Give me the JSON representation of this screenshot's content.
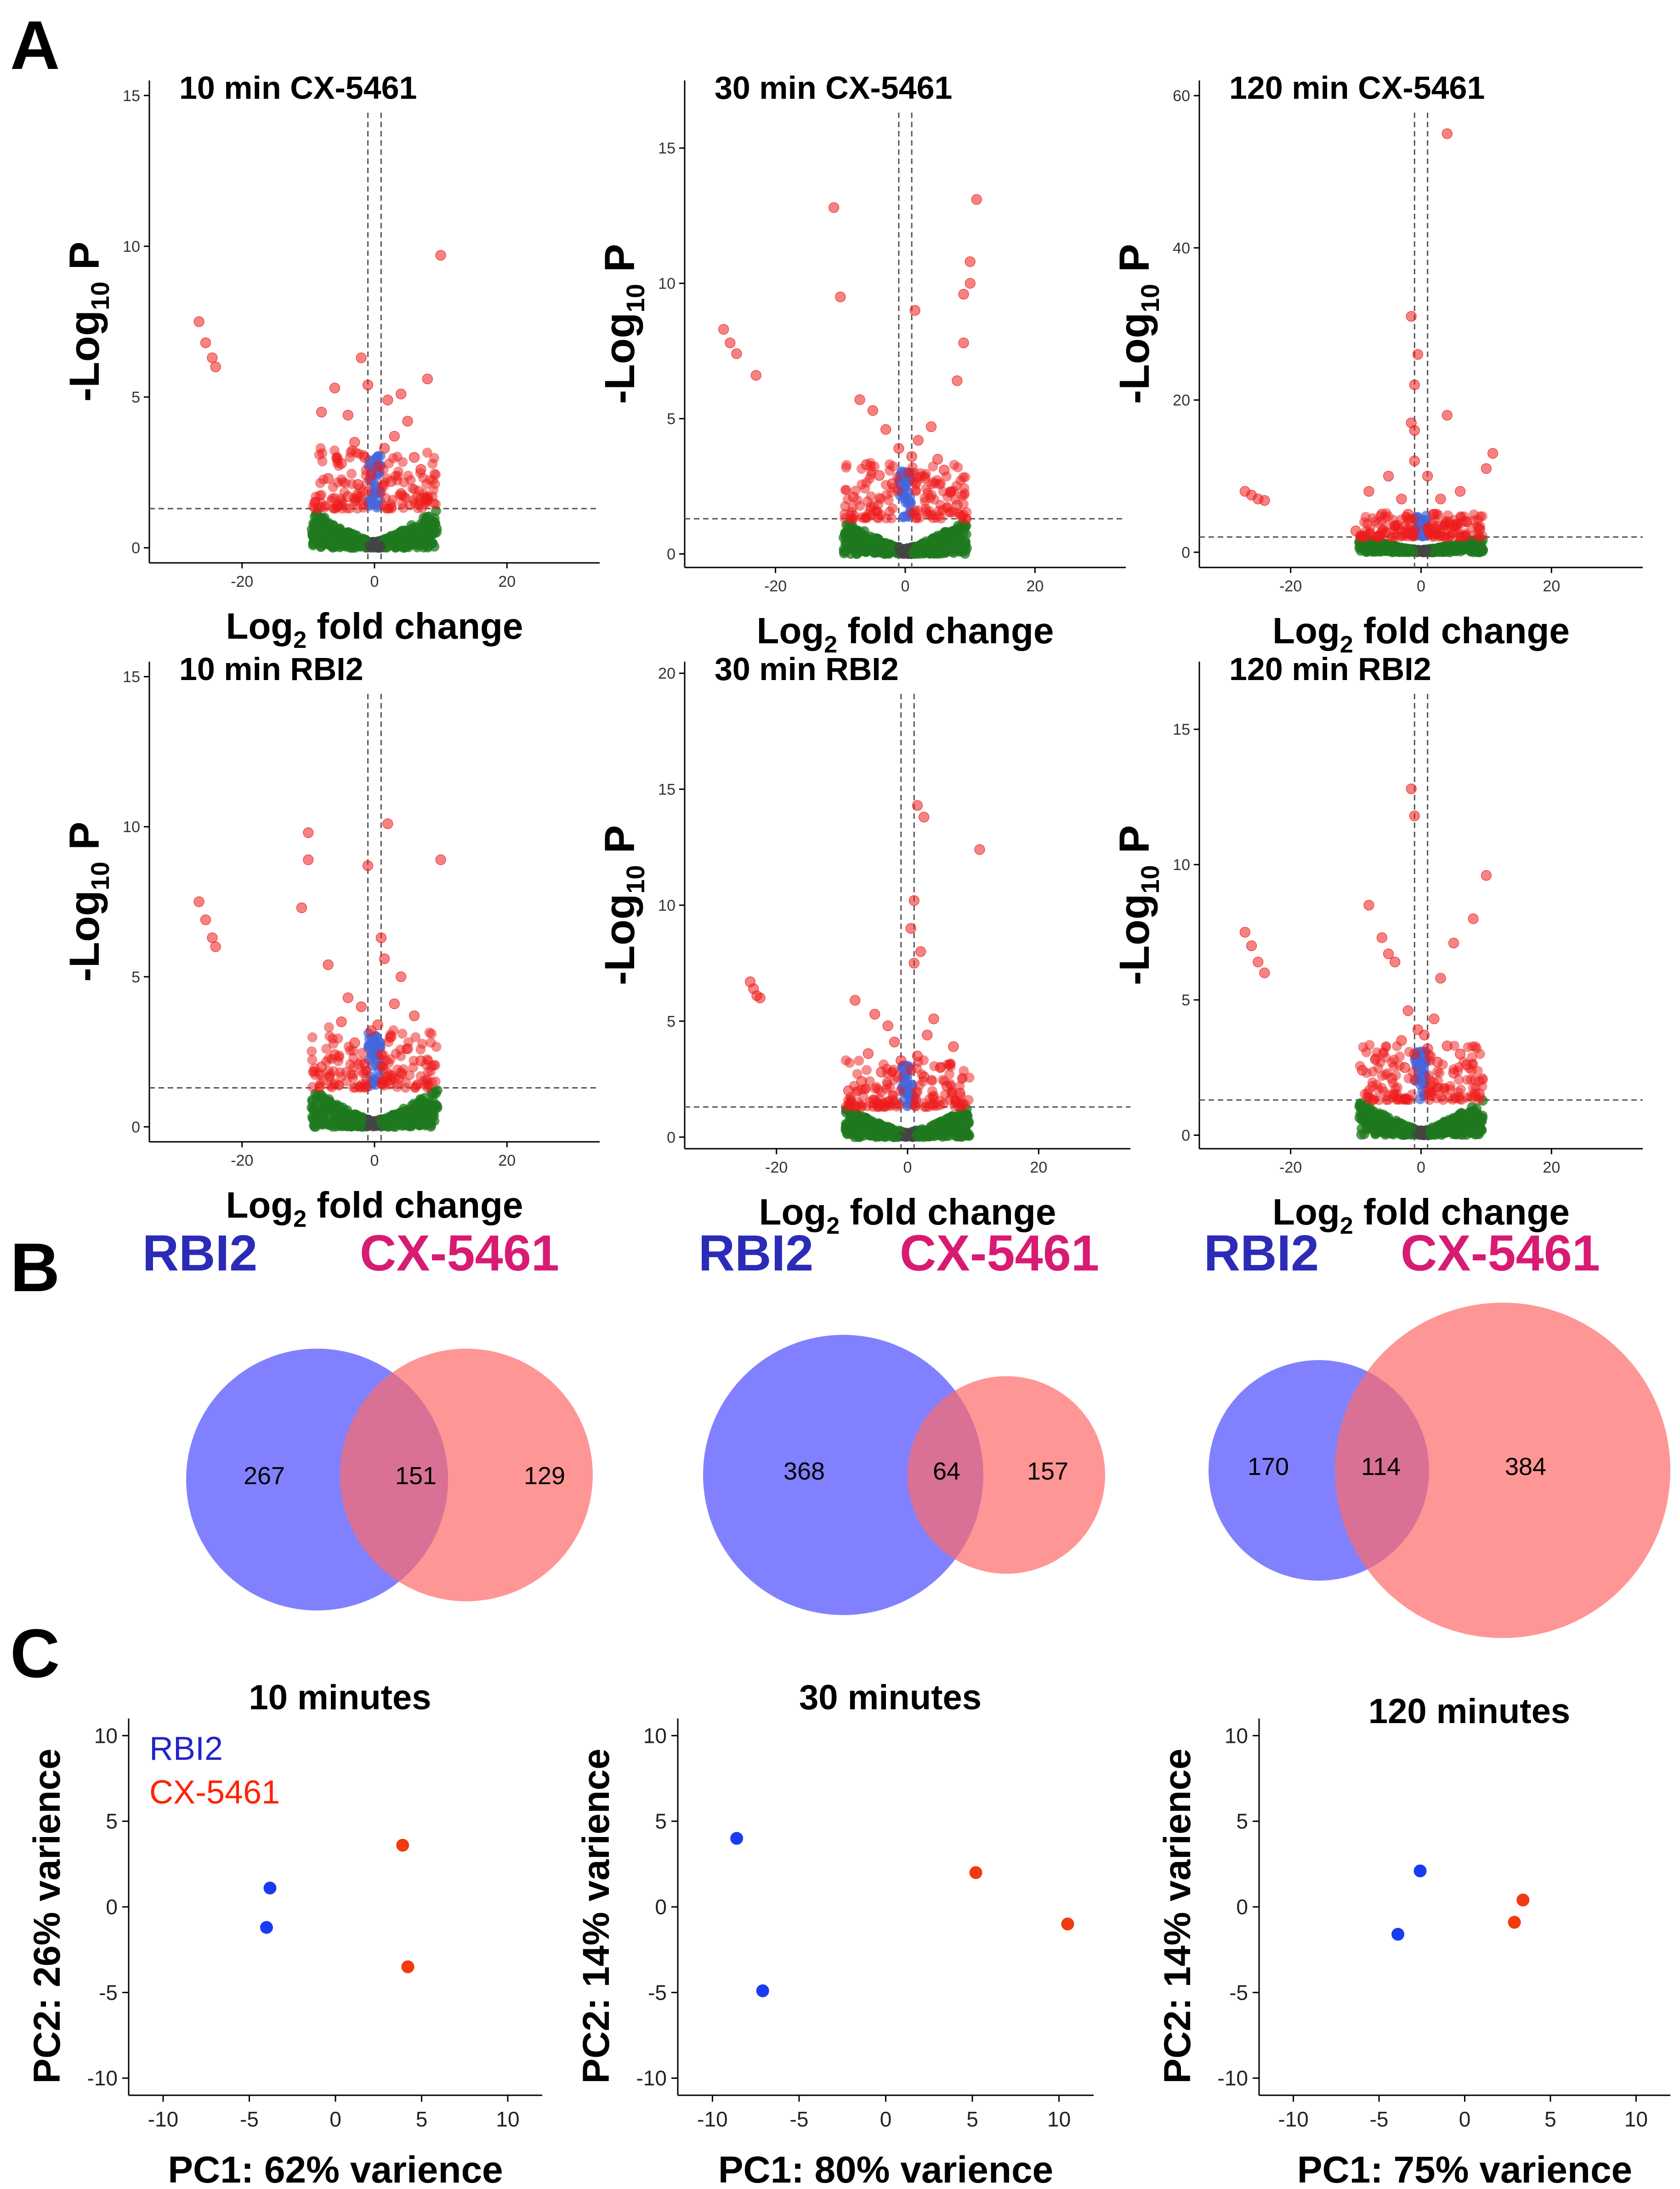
{
  "panel_letters": [
    "A",
    "B",
    "C"
  ],
  "chart_data": [
    {
      "type": "scatter",
      "kind": "volcano",
      "title": "10 min CX-5461",
      "xlabel": "Log2 fold change",
      "ylabel": "-Log10 P",
      "xlim": [
        -34,
        34
      ],
      "ylim": [
        -0.5,
        15.5
      ],
      "xticks": [
        -20,
        0,
        20
      ],
      "yticks": [
        0,
        5,
        10,
        15
      ],
      "fc_cutoff": 1,
      "p_cutoff": 1.3,
      "points": [
        [
          -26.5,
          7.5
        ],
        [
          -25.5,
          6.8
        ],
        [
          -24.5,
          6.3
        ],
        [
          -24,
          6
        ],
        [
          10,
          9.7
        ],
        [
          -2,
          6.3
        ],
        [
          8,
          5.6
        ],
        [
          -6,
          5.3
        ],
        [
          4,
          5.1
        ],
        [
          -1,
          5.4
        ],
        [
          2,
          4.9
        ],
        [
          -8,
          4.5
        ],
        [
          5,
          4.2
        ],
        [
          -4,
          4.4
        ],
        [
          3,
          3.7
        ],
        [
          -3,
          3.5
        ],
        [
          1.5,
          3.3
        ],
        [
          -1.5,
          3.0
        ],
        [
          6,
          3.0
        ],
        [
          -5,
          2.8
        ],
        [
          7,
          2.6
        ],
        [
          -7,
          2.3
        ],
        [
          0.5,
          2.7
        ],
        [
          -0.5,
          2.4
        ],
        [
          2.5,
          2.2
        ],
        [
          -2.5,
          2.1
        ],
        [
          4,
          1.8
        ],
        [
          -4,
          1.7
        ],
        [
          8,
          1.6
        ],
        [
          -9,
          1.5
        ]
      ]
    },
    {
      "type": "scatter",
      "kind": "volcano",
      "title": "30 min CX-5461",
      "xlabel": "Log2 fold change",
      "ylabel": "-Log10 P",
      "xlim": [
        -34,
        34
      ],
      "ylim": [
        -0.5,
        17.5
      ],
      "xticks": [
        -20,
        0,
        20
      ],
      "yticks": [
        0,
        5,
        10,
        15
      ],
      "fc_cutoff": 1,
      "p_cutoff": 1.3,
      "points": [
        [
          -28,
          8.3
        ],
        [
          -27,
          7.8
        ],
        [
          -26,
          7.4
        ],
        [
          -23,
          6.6
        ],
        [
          -11,
          12.8
        ],
        [
          -10,
          9.5
        ],
        [
          11,
          13.1
        ],
        [
          10,
          10.8
        ],
        [
          10,
          10.0
        ],
        [
          9,
          9.6
        ],
        [
          1.5,
          9.0
        ],
        [
          9,
          7.8
        ],
        [
          8,
          6.4
        ],
        [
          -7,
          5.7
        ],
        [
          -5,
          5.3
        ],
        [
          4,
          4.7
        ],
        [
          -3,
          4.6
        ],
        [
          2,
          4.2
        ],
        [
          -1,
          3.9
        ],
        [
          1,
          3.6
        ],
        [
          5,
          3.5
        ],
        [
          -6,
          3.3
        ],
        [
          6,
          3.1
        ],
        [
          -4,
          2.9
        ],
        [
          3,
          2.8
        ],
        [
          0.5,
          3.0
        ],
        [
          -2,
          2.6
        ],
        [
          7,
          2.3
        ],
        [
          -8,
          2.1
        ],
        [
          8,
          1.8
        ]
      ]
    },
    {
      "type": "scatter",
      "kind": "volcano",
      "title": "120 min CX-5461",
      "xlabel": "Log2 fold change",
      "ylabel": "-Log10 P",
      "xlim": [
        -34,
        34
      ],
      "ylim": [
        -2,
        62
      ],
      "xticks": [
        -20,
        0,
        20
      ],
      "yticks": [
        0,
        20,
        40,
        60
      ],
      "fc_cutoff": 1,
      "p_cutoff": 2,
      "points": [
        [
          -27,
          8
        ],
        [
          -26,
          7.5
        ],
        [
          -25,
          7
        ],
        [
          -24,
          6.8
        ],
        [
          4,
          55
        ],
        [
          -1.5,
          31
        ],
        [
          -0.5,
          26
        ],
        [
          -1,
          22
        ],
        [
          -1.5,
          17
        ],
        [
          -1,
          16
        ],
        [
          4,
          18
        ],
        [
          11,
          13
        ],
        [
          10,
          11
        ],
        [
          -1,
          12
        ],
        [
          1,
          10
        ],
        [
          -5,
          10
        ],
        [
          -8,
          8
        ],
        [
          6,
          8
        ],
        [
          3,
          7
        ],
        [
          -3,
          7
        ],
        [
          -6,
          5
        ],
        [
          7,
          4
        ],
        [
          2,
          5
        ],
        [
          -2,
          5
        ],
        [
          5,
          3.5
        ],
        [
          -4,
          3.5
        ],
        [
          9,
          3
        ],
        [
          -10,
          2.8
        ],
        [
          1,
          3.2
        ],
        [
          -1,
          3.0
        ]
      ]
    },
    {
      "type": "scatter",
      "kind": "volcano",
      "title": "10 min RBI2",
      "xlabel": "Log2 fold change",
      "ylabel": "-Log10 P",
      "xlim": [
        -34,
        34
      ],
      "ylim": [
        -0.5,
        15.5
      ],
      "xticks": [
        -20,
        0,
        20
      ],
      "yticks": [
        0,
        5,
        10,
        15
      ],
      "fc_cutoff": 1,
      "p_cutoff": 1.3,
      "points": [
        [
          -26.5,
          7.5
        ],
        [
          -25.5,
          6.9
        ],
        [
          -24.5,
          6.3
        ],
        [
          -24,
          6.0
        ],
        [
          -10,
          9.8
        ],
        [
          -10,
          8.9
        ],
        [
          -11,
          7.3
        ],
        [
          2,
          10.1
        ],
        [
          10,
          8.9
        ],
        [
          -1,
          8.7
        ],
        [
          1,
          6.3
        ],
        [
          -7,
          5.4
        ],
        [
          1.5,
          5.6
        ],
        [
          4,
          5.0
        ],
        [
          -4,
          4.3
        ],
        [
          3,
          4.1
        ],
        [
          -2,
          4.0
        ],
        [
          6,
          3.7
        ],
        [
          -5,
          3.5
        ],
        [
          0.5,
          3.4
        ],
        [
          -0.5,
          3.2
        ],
        [
          2.5,
          3.0
        ],
        [
          -3,
          2.8
        ],
        [
          5,
          2.6
        ],
        [
          -6,
          2.4
        ],
        [
          7,
          2.2
        ],
        [
          -8,
          2.0
        ],
        [
          1,
          2.4
        ],
        [
          -1.5,
          2.1
        ],
        [
          4,
          1.8
        ]
      ]
    },
    {
      "type": "scatter",
      "kind": "volcano",
      "title": "30 min RBI2",
      "xlabel": "Log2 fold change",
      "ylabel": "-Log10 P",
      "xlim": [
        -34,
        34
      ],
      "ylim": [
        -0.5,
        20.5
      ],
      "xticks": [
        -20,
        0,
        20
      ],
      "yticks": [
        0,
        5,
        10,
        15,
        20
      ],
      "fc_cutoff": 1,
      "p_cutoff": 1.3,
      "points": [
        [
          -24,
          6.7
        ],
        [
          -23.5,
          6.4
        ],
        [
          -23,
          6.1
        ],
        [
          -22.5,
          6.0
        ],
        [
          11,
          12.4
        ],
        [
          1.5,
          14.3
        ],
        [
          2.5,
          13.8
        ],
        [
          1,
          10.2
        ],
        [
          0.5,
          9.0
        ],
        [
          2,
          8.0
        ],
        [
          1,
          7.5
        ],
        [
          -8,
          5.9
        ],
        [
          -5,
          5.3
        ],
        [
          4,
          5.1
        ],
        [
          -3,
          4.8
        ],
        [
          3,
          4.4
        ],
        [
          -2,
          4.1
        ],
        [
          7,
          3.9
        ],
        [
          -6,
          3.6
        ],
        [
          1.5,
          3.5
        ],
        [
          -1,
          3.3
        ],
        [
          5,
          3.0
        ],
        [
          -4,
          2.8
        ],
        [
          2.5,
          2.6
        ],
        [
          -7,
          2.4
        ],
        [
          6,
          2.2
        ],
        [
          -9,
          2.0
        ],
        [
          8,
          1.9
        ],
        [
          -1.5,
          2.6
        ],
        [
          0.5,
          2.9
        ]
      ]
    },
    {
      "type": "scatter",
      "kind": "volcano",
      "title": "120 min RBI2",
      "xlabel": "Log2 fold change",
      "ylabel": "-Log10 P",
      "xlim": [
        -34,
        34
      ],
      "ylim": [
        -0.5,
        17.5
      ],
      "xticks": [
        -20,
        0,
        20
      ],
      "yticks": [
        0,
        5,
        10,
        15
      ],
      "fc_cutoff": 1,
      "p_cutoff": 1.3,
      "points": [
        [
          -27,
          7.5
        ],
        [
          -26,
          7.0
        ],
        [
          -25,
          6.4
        ],
        [
          -24,
          6.0
        ],
        [
          -1.5,
          12.8
        ],
        [
          -1,
          11.8
        ],
        [
          10,
          9.6
        ],
        [
          -8,
          8.5
        ],
        [
          8,
          8.0
        ],
        [
          5,
          7.1
        ],
        [
          -6,
          7.3
        ],
        [
          -5,
          6.7
        ],
        [
          -4,
          6.4
        ],
        [
          3,
          5.8
        ],
        [
          -2,
          4.6
        ],
        [
          2,
          4.3
        ],
        [
          -0.5,
          3.9
        ],
        [
          0.5,
          3.7
        ],
        [
          -3,
          3.5
        ],
        [
          4,
          3.3
        ],
        [
          6,
          3.0
        ],
        [
          -7,
          2.8
        ],
        [
          7,
          2.6
        ],
        [
          -9,
          2.4
        ],
        [
          1,
          3.2
        ],
        [
          -1,
          3.0
        ],
        [
          2.5,
          2.7
        ],
        [
          -2.5,
          2.5
        ],
        [
          5,
          2.3
        ],
        [
          -4.5,
          2.1
        ]
      ]
    },
    {
      "type": "venn",
      "sets": [
        "RBI2",
        "CX-5461"
      ],
      "left_only": 267,
      "both": 151,
      "right_only": 129
    },
    {
      "type": "venn",
      "sets": [
        "RBI2",
        "CX-5461"
      ],
      "left_only": 368,
      "both": 64,
      "right_only": 157
    },
    {
      "type": "venn",
      "sets": [
        "RBI2",
        "CX-5461"
      ],
      "left_only": 170,
      "both": 114,
      "right_only": 384
    },
    {
      "type": "scatter",
      "kind": "pca",
      "title": "10 minutes",
      "xlabel": "PC1: 62% varience",
      "ylabel": "PC2: 26% varience",
      "xlim": [
        -12,
        12
      ],
      "ylim": [
        -11,
        11
      ],
      "xticks": [
        -10,
        -5,
        0,
        5,
        10
      ],
      "yticks": [
        -10,
        -5,
        0,
        5,
        10
      ],
      "legend": [
        {
          "name": "RBI2",
          "color": "#2323c8"
        },
        {
          "name": "CX-5461",
          "color": "#ff2200"
        }
      ],
      "points": [
        {
          "group": "RBI2",
          "x": -3.8,
          "y": 1.1
        },
        {
          "group": "RBI2",
          "x": -4.0,
          "y": -1.2
        },
        {
          "group": "CX-5461",
          "x": 3.9,
          "y": 3.6
        },
        {
          "group": "CX-5461",
          "x": 4.2,
          "y": -3.5
        }
      ]
    },
    {
      "type": "scatter",
      "kind": "pca",
      "title": "30 minutes",
      "xlabel": "PC1: 80% varience",
      "ylabel": "PC2: 14% varience",
      "xlim": [
        -12,
        12
      ],
      "ylim": [
        -11,
        11
      ],
      "xticks": [
        -10,
        -5,
        0,
        5,
        10
      ],
      "yticks": [
        -10,
        -5,
        0,
        5,
        10
      ],
      "points": [
        {
          "group": "RBI2",
          "x": -8.6,
          "y": 4.0
        },
        {
          "group": "RBI2",
          "x": -7.1,
          "y": -4.9
        },
        {
          "group": "CX-5461",
          "x": 5.2,
          "y": 2.0
        },
        {
          "group": "CX-5461",
          "x": 10.5,
          "y": -1.0
        }
      ]
    },
    {
      "type": "scatter",
      "kind": "pca",
      "title": "120 minutes",
      "xlabel": "PC1: 75% varience",
      "ylabel": "PC2: 14% varience",
      "xlim": [
        -12,
        12
      ],
      "ylim": [
        -11,
        11
      ],
      "xticks": [
        -10,
        -5,
        0,
        5,
        10
      ],
      "yticks": [
        -10,
        -5,
        0,
        5,
        10
      ],
      "points": [
        {
          "group": "RBI2",
          "x": -2.6,
          "y": 2.1
        },
        {
          "group": "RBI2",
          "x": -3.9,
          "y": -1.6
        },
        {
          "group": "CX-5461",
          "x": 3.4,
          "y": 0.4
        },
        {
          "group": "CX-5461",
          "x": 2.9,
          "y": -0.9
        }
      ]
    }
  ],
  "colors": {
    "sig_point": "#ee1c1c",
    "fc_only_point": "#1f7a1f",
    "p_only_point": "#4466dd",
    "ns_point": "#444444",
    "venn_left": "#6b6bff",
    "venn_right": "#ff6a6a",
    "venn_left_label": "#2b2bb8",
    "venn_right_label": "#d81b72",
    "pca_rbi2": "#1a3cf0",
    "pca_cx": "#f03a10",
    "legend_rbi2": "#2323c8",
    "legend_cx": "#ff2200"
  }
}
